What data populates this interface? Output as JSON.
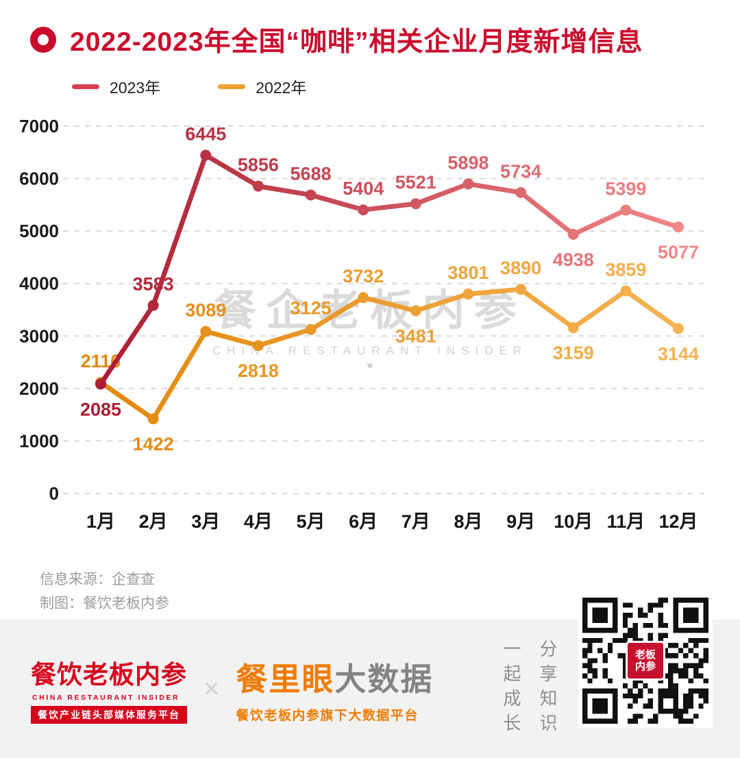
{
  "header": {
    "title": "2022-2023年全国“咖啡”相关企业月度新增信息"
  },
  "chart_data": {
    "type": "line",
    "title": "2022-2023年全国“咖啡”相关企业月度新增信息",
    "categories": [
      "1月",
      "2月",
      "3月",
      "4月",
      "5月",
      "6月",
      "7月",
      "8月",
      "9月",
      "10月",
      "11月",
      "12月"
    ],
    "series": [
      {
        "name": "2023年",
        "color_start": "#a8182e",
        "color_end": "#f28c8c",
        "values": [
          2085,
          3583,
          6445,
          5856,
          5688,
          5404,
          5521,
          5898,
          5734,
          4938,
          5399,
          5077
        ],
        "label_side": [
          "below",
          "above",
          "above",
          "above",
          "above",
          "above",
          "above",
          "above",
          "above",
          "below",
          "above",
          "below"
        ]
      },
      {
        "name": "2022年",
        "color_start": "#e2860a",
        "color_end": "#f6b558",
        "values": [
          2116,
          1422,
          3089,
          2818,
          3125,
          3732,
          3481,
          3801,
          3890,
          3159,
          3859,
          3144
        ],
        "label_side": [
          "above",
          "below",
          "above",
          "below",
          "above",
          "above",
          "below",
          "above",
          "above",
          "below",
          "above",
          "below"
        ]
      }
    ],
    "ylim": [
      0,
      7000
    ],
    "yticks": [
      0,
      1000,
      2000,
      3000,
      4000,
      5000,
      6000,
      7000
    ],
    "grid": true,
    "legend_position": "top-left"
  },
  "watermark": {
    "cn": "餐企老板内参",
    "en": "CHINA RESTAURANT INSIDER",
    "star": "★"
  },
  "source": {
    "line1": "信息来源：企查查",
    "line2": "制图：餐饮老板内参"
  },
  "footer": {
    "brand_cn": "餐饮老板内参",
    "brand_en": "CHINA RESTAURANT INSIDER",
    "brand_tagline": "餐饮产业链头部媒体服务平台",
    "separator": "×",
    "product_name": "餐里眼",
    "product_suffix": "大数据",
    "product_tagline": "餐饮老板内参旗下大数据平台",
    "slogan_left": "一起成长",
    "slogan_right": "分享知识",
    "qr_label_line1": "老板",
    "qr_label_line2": "内参"
  },
  "colors": {
    "title_red": "#cb0b2d",
    "footer_band": "#f2f2f2"
  }
}
